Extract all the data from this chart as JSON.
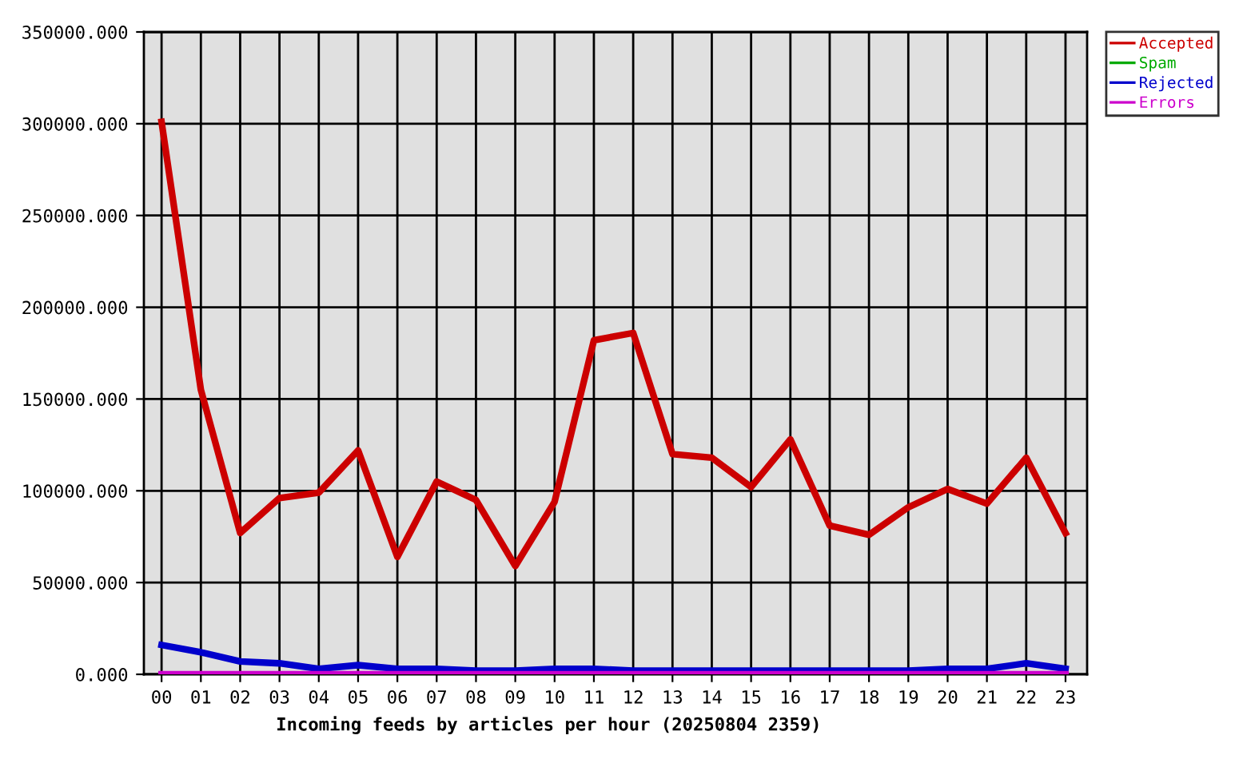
{
  "chart_data": {
    "type": "line",
    "xlabel": "Incoming feeds by articles per hour (20250804 2359)",
    "categories": [
      "00",
      "01",
      "02",
      "03",
      "04",
      "05",
      "06",
      "07",
      "08",
      "09",
      "10",
      "11",
      "12",
      "13",
      "14",
      "15",
      "16",
      "17",
      "18",
      "19",
      "20",
      "21",
      "22",
      "23"
    ],
    "series": [
      {
        "name": "Accepted",
        "color": "#cc0000",
        "values": [
          301000,
          155000,
          77000,
          96000,
          99000,
          122000,
          64000,
          105000,
          95000,
          59000,
          94000,
          182000,
          186000,
          120000,
          118000,
          102000,
          128000,
          81000,
          76000,
          91000,
          101000,
          93000,
          118000,
          77000
        ]
      },
      {
        "name": "Spam",
        "color": "#00aa00",
        "values": [
          null,
          null,
          null,
          null,
          null,
          null,
          null,
          null,
          null,
          null,
          null,
          null,
          null,
          null,
          null,
          null,
          null,
          null,
          null,
          null,
          null,
          null,
          null,
          null
        ]
      },
      {
        "name": "Rejected",
        "color": "#0000cc",
        "values": [
          16000,
          12000,
          7000,
          6000,
          3000,
          5000,
          3000,
          3000,
          2000,
          2000,
          3000,
          3000,
          2000,
          2000,
          2000,
          2000,
          2000,
          2000,
          2000,
          2000,
          3000,
          3000,
          6000,
          3000
        ]
      },
      {
        "name": "Errors",
        "color": "#cc00cc",
        "values": [
          0,
          0,
          0,
          0,
          0,
          0,
          0,
          0,
          0,
          0,
          0,
          0,
          0,
          0,
          0,
          0,
          0,
          0,
          0,
          0,
          0,
          0,
          0,
          0
        ]
      }
    ],
    "ylim": [
      0,
      350000
    ],
    "yticks": [
      {
        "value": 0,
        "label": "0.000"
      },
      {
        "value": 50000,
        "label": "50000.000"
      },
      {
        "value": 100000,
        "label": "100000.000"
      },
      {
        "value": 150000,
        "label": "150000.000"
      },
      {
        "value": 200000,
        "label": "200000.000"
      },
      {
        "value": 250000,
        "label": "250000.000"
      },
      {
        "value": 300000,
        "label": "300000.000"
      },
      {
        "value": 350000,
        "label": "350000.000"
      }
    ],
    "grid": true,
    "legend": "top right",
    "marker": "none",
    "line_style": "solid"
  }
}
